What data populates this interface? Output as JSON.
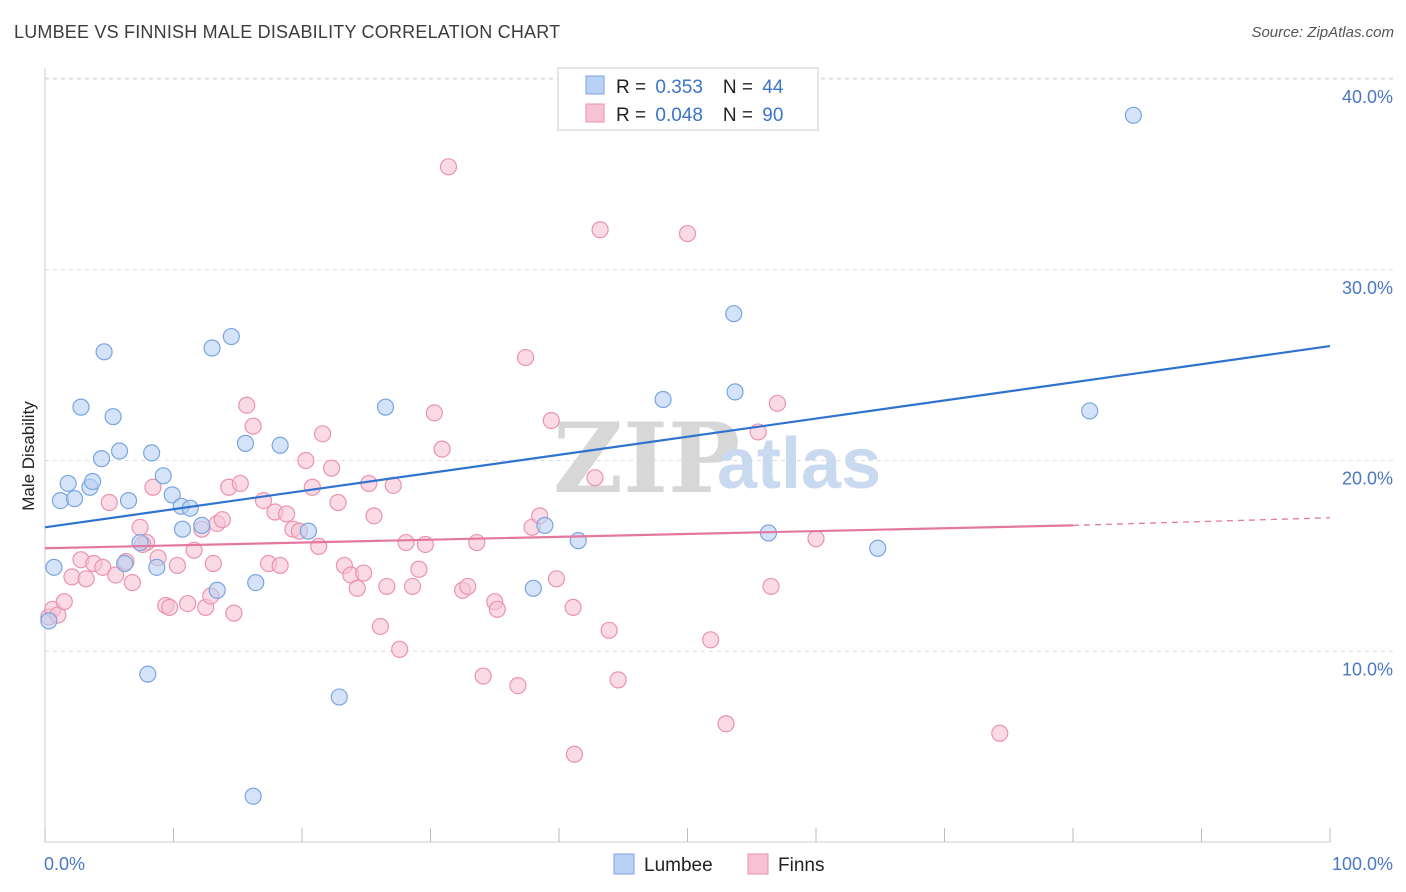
{
  "title": "LUMBEE VS FINNISH MALE DISABILITY CORRELATION CHART",
  "source": "Source: ZipAtlas.com",
  "watermark": {
    "zip": "ZIP",
    "atlas": "atlas"
  },
  "colors": {
    "lumbee_fill": "#b9d1f4",
    "lumbee_stroke": "#7aa5e0",
    "lumbee_line": "#2f73d0",
    "finns_fill": "#f7c3d4",
    "finns_stroke": "#eb92b1",
    "finns_line": "#e4779f",
    "value_blue": "#3a74c8",
    "tick_blue": "#4a78c2",
    "grid": "#dddddd"
  },
  "legend": {
    "rows": [
      {
        "r_label": "R = ",
        "r_value": "0.353",
        "n_label": "N = ",
        "n_value": "44"
      },
      {
        "r_label": "R = ",
        "r_value": "0.048",
        "n_label": "N = ",
        "n_value": "90"
      }
    ]
  },
  "chart_data": {
    "type": "scatter",
    "title": "LUMBEE VS FINNISH MALE DISABILITY CORRELATION CHART",
    "xlabel": "",
    "ylabel": "Male Disability",
    "xlim": [
      0,
      100
    ],
    "ylim": [
      0,
      41
    ],
    "x_tick_labels": [
      "0.0%",
      "100.0%"
    ],
    "y_ticks": [
      10,
      20,
      30,
      40
    ],
    "y_tick_labels": [
      "10.0%",
      "20.0%",
      "30.0%",
      "40.0%"
    ],
    "grid": true,
    "legend_position": "top-center",
    "series": [
      {
        "name": "Lumbee",
        "r": 0.353,
        "n": 44,
        "trend": {
          "x": [
            0,
            100
          ],
          "y": [
            16.5,
            26.0
          ]
        },
        "points": [
          [
            0.3,
            11.6
          ],
          [
            0.7,
            14.4
          ],
          [
            1.2,
            17.9
          ],
          [
            1.8,
            18.8
          ],
          [
            2.3,
            18.0
          ],
          [
            2.8,
            22.8
          ],
          [
            3.5,
            18.6
          ],
          [
            3.7,
            18.9
          ],
          [
            4.4,
            20.1
          ],
          [
            4.6,
            25.7
          ],
          [
            5.3,
            22.3
          ],
          [
            5.8,
            20.5
          ],
          [
            6.5,
            17.9
          ],
          [
            7.4,
            15.7
          ],
          [
            6.2,
            14.6
          ],
          [
            8.3,
            20.4
          ],
          [
            8.7,
            14.4
          ],
          [
            9.2,
            19.2
          ],
          [
            9.9,
            18.2
          ],
          [
            10.6,
            17.6
          ],
          [
            10.7,
            16.4
          ],
          [
            11.3,
            17.5
          ],
          [
            12.2,
            16.6
          ],
          [
            13.0,
            25.9
          ],
          [
            13.4,
            13.2
          ],
          [
            14.5,
            26.5
          ],
          [
            15.6,
            20.9
          ],
          [
            16.4,
            13.6
          ],
          [
            18.3,
            20.8
          ],
          [
            20.5,
            16.3
          ],
          [
            22.9,
            7.6
          ],
          [
            8.0,
            8.8
          ],
          [
            16.2,
            2.4
          ],
          [
            26.5,
            22.8
          ],
          [
            38.0,
            13.3
          ],
          [
            38.9,
            16.6
          ],
          [
            41.5,
            15.8
          ],
          [
            48.1,
            23.2
          ],
          [
            53.6,
            27.7
          ],
          [
            53.7,
            23.6
          ],
          [
            56.3,
            16.2
          ],
          [
            64.8,
            15.4
          ],
          [
            81.3,
            22.6
          ],
          [
            84.7,
            38.1
          ]
        ]
      },
      {
        "name": "Finns",
        "r": 0.048,
        "n": 90,
        "trend": {
          "x": [
            0,
            80
          ],
          "y": [
            15.4,
            16.6
          ]
        },
        "trend_dashed": {
          "x": [
            80,
            100
          ],
          "y": [
            16.6,
            17.0
          ]
        },
        "points": [
          [
            0.3,
            11.8
          ],
          [
            0.6,
            12.2
          ],
          [
            1.0,
            11.9
          ],
          [
            1.5,
            12.6
          ],
          [
            2.1,
            13.9
          ],
          [
            2.8,
            14.8
          ],
          [
            3.2,
            13.8
          ],
          [
            3.8,
            14.6
          ],
          [
            4.5,
            14.4
          ],
          [
            5.0,
            17.8
          ],
          [
            5.5,
            14.0
          ],
          [
            6.3,
            14.7
          ],
          [
            6.8,
            13.6
          ],
          [
            7.4,
            16.5
          ],
          [
            7.9,
            15.7
          ],
          [
            8.4,
            18.6
          ],
          [
            8.8,
            14.9
          ],
          [
            9.4,
            12.4
          ],
          [
            9.7,
            12.3
          ],
          [
            10.3,
            14.5
          ],
          [
            11.1,
            12.5
          ],
          [
            11.6,
            15.3
          ],
          [
            12.2,
            16.4
          ],
          [
            12.5,
            12.3
          ],
          [
            12.9,
            12.9
          ],
          [
            13.4,
            16.7
          ],
          [
            13.8,
            16.9
          ],
          [
            14.3,
            18.6
          ],
          [
            14.7,
            12.0
          ],
          [
            15.2,
            18.8
          ],
          [
            15.7,
            22.9
          ],
          [
            16.2,
            21.8
          ],
          [
            17.0,
            17.9
          ],
          [
            17.4,
            14.6
          ],
          [
            17.9,
            17.3
          ],
          [
            18.3,
            14.5
          ],
          [
            18.8,
            17.2
          ],
          [
            19.3,
            16.4
          ],
          [
            19.8,
            16.3
          ],
          [
            20.3,
            20.0
          ],
          [
            20.8,
            18.6
          ],
          [
            21.3,
            15.5
          ],
          [
            21.6,
            21.4
          ],
          [
            22.3,
            19.6
          ],
          [
            22.8,
            17.8
          ],
          [
            23.3,
            14.5
          ],
          [
            23.8,
            14.0
          ],
          [
            24.3,
            13.3
          ],
          [
            24.8,
            14.1
          ],
          [
            25.2,
            18.8
          ],
          [
            25.6,
            17.1
          ],
          [
            26.1,
            11.3
          ],
          [
            26.6,
            13.4
          ],
          [
            27.1,
            18.7
          ],
          [
            27.6,
            10.1
          ],
          [
            28.1,
            15.7
          ],
          [
            28.6,
            13.4
          ],
          [
            29.1,
            14.3
          ],
          [
            29.6,
            15.6
          ],
          [
            30.3,
            22.5
          ],
          [
            30.9,
            20.6
          ],
          [
            31.4,
            35.4
          ],
          [
            32.5,
            13.2
          ],
          [
            32.9,
            13.4
          ],
          [
            33.6,
            15.7
          ],
          [
            34.1,
            8.7
          ],
          [
            35.0,
            12.6
          ],
          [
            35.2,
            12.2
          ],
          [
            36.8,
            8.2
          ],
          [
            37.4,
            25.4
          ],
          [
            37.9,
            16.5
          ],
          [
            38.5,
            17.1
          ],
          [
            39.4,
            22.1
          ],
          [
            39.8,
            13.8
          ],
          [
            41.1,
            12.3
          ],
          [
            41.2,
            4.6
          ],
          [
            42.8,
            19.1
          ],
          [
            43.2,
            32.1
          ],
          [
            43.9,
            11.1
          ],
          [
            44.6,
            8.5
          ],
          [
            50.0,
            31.9
          ],
          [
            51.8,
            10.6
          ],
          [
            53.0,
            6.2
          ],
          [
            55.5,
            21.5
          ],
          [
            56.5,
            13.4
          ],
          [
            57.0,
            23.0
          ],
          [
            60.0,
            15.9
          ],
          [
            74.3,
            5.7
          ],
          [
            7.6,
            15.6
          ],
          [
            13.1,
            14.6
          ]
        ]
      }
    ]
  },
  "bottom_legend": {
    "items": [
      "Lumbee",
      "Finns"
    ]
  }
}
